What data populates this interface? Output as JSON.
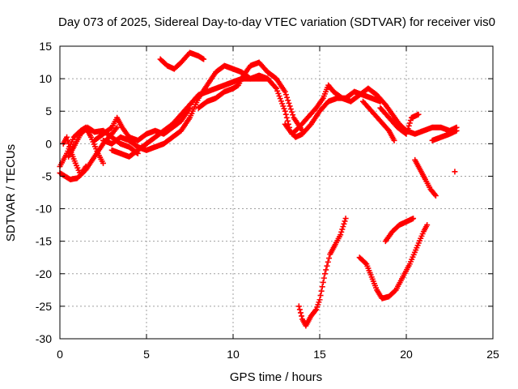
{
  "chart_data": {
    "type": "scatter",
    "title": "Day 073 of 2025, Sidereal Day-to-day VTEC variation (SDTVAR) for receiver vis0",
    "xlabel": "GPS time / hours",
    "ylabel": "SDTVAR / TECUs",
    "xlim": [
      0,
      25
    ],
    "ylim": [
      -30,
      15
    ],
    "xticks": [
      0,
      5,
      10,
      15,
      20,
      25
    ],
    "yticks": [
      -30,
      -25,
      -20,
      -15,
      -10,
      -5,
      0,
      5,
      10,
      15
    ],
    "grid": true,
    "marker": "plus",
    "color": "#ff0000",
    "series": [
      {
        "values": [
          [
            0.0,
            -4.5
          ],
          [
            0.3,
            -5.0
          ],
          [
            0.6,
            -5.5
          ],
          [
            1.0,
            -5.3
          ],
          [
            1.5,
            -4.0
          ],
          [
            2.0,
            -2.0
          ],
          [
            2.5,
            0.0
          ],
          [
            3.0,
            1.5
          ],
          [
            3.3,
            2.5
          ]
        ]
      },
      {
        "values": [
          [
            0.0,
            -3.5
          ],
          [
            0.4,
            -1.5
          ],
          [
            0.8,
            1.0
          ],
          [
            1.2,
            2.0
          ],
          [
            1.5,
            2.5
          ],
          [
            1.8,
            1.0
          ],
          [
            2.2,
            -1.5
          ],
          [
            2.5,
            -3.0
          ]
        ]
      },
      {
        "values": [
          [
            0.2,
            0.0
          ],
          [
            0.4,
            1.0
          ],
          [
            0.6,
            -1.0
          ],
          [
            0.9,
            -3.0
          ],
          [
            1.2,
            -4.8
          ],
          [
            1.5,
            -3.5
          ]
        ]
      },
      {
        "values": [
          [
            0.5,
            -2.0
          ],
          [
            0.8,
            -0.5
          ],
          [
            1.2,
            1.5
          ],
          [
            1.6,
            2.5
          ],
          [
            2.0,
            1.8
          ],
          [
            2.5,
            2.0
          ],
          [
            3.0,
            1.0
          ],
          [
            3.5,
            0.0
          ],
          [
            4.0,
            -0.5
          ],
          [
            4.5,
            -1.5
          ]
        ]
      },
      {
        "values": [
          [
            2.0,
            0.5
          ],
          [
            2.5,
            1.5
          ],
          [
            3.0,
            2.5
          ],
          [
            3.3,
            4.0
          ],
          [
            3.6,
            2.5
          ],
          [
            4.0,
            1.0
          ],
          [
            4.5,
            0.5
          ],
          [
            5.0,
            1.5
          ],
          [
            5.5,
            2.0
          ],
          [
            6.0,
            1.5
          ],
          [
            6.5,
            2.5
          ],
          [
            7.0,
            3.5
          ],
          [
            7.5,
            5.5
          ]
        ]
      },
      {
        "values": [
          [
            2.5,
            0.5
          ],
          [
            3.0,
            0.0
          ],
          [
            3.5,
            1.0
          ],
          [
            4.0,
            0.5
          ],
          [
            4.5,
            -0.5
          ],
          [
            5.0,
            -1.0
          ],
          [
            5.5,
            -0.5
          ],
          [
            6.0,
            0.0
          ],
          [
            6.5,
            1.0
          ],
          [
            7.0,
            2.0
          ],
          [
            7.5,
            4.0
          ],
          [
            8.0,
            7.0
          ],
          [
            8.5,
            9.0
          ],
          [
            9.0,
            11.0
          ],
          [
            9.5,
            12.0
          ],
          [
            10.0,
            11.5
          ],
          [
            10.5,
            11.0
          ],
          [
            11.0,
            10.0
          ],
          [
            11.5,
            10.0
          ],
          [
            12.0,
            10.0
          ]
        ]
      },
      {
        "values": [
          [
            3.0,
            -1.0
          ],
          [
            3.5,
            -1.5
          ],
          [
            4.0,
            -2.0
          ],
          [
            4.5,
            -1.0
          ],
          [
            5.0,
            0.0
          ],
          [
            5.5,
            1.0
          ],
          [
            6.0,
            2.0
          ],
          [
            6.5,
            3.0
          ],
          [
            7.0,
            4.5
          ],
          [
            7.5,
            6.0
          ],
          [
            8.0,
            7.5
          ],
          [
            8.5,
            8.0
          ],
          [
            9.0,
            8.5
          ],
          [
            9.5,
            9.0
          ],
          [
            10.0,
            9.5
          ],
          [
            10.5,
            10.0
          ],
          [
            11.0,
            10.0
          ],
          [
            11.5,
            10.5
          ],
          [
            12.0,
            10.0
          ],
          [
            12.5,
            8.5
          ],
          [
            13.0,
            5.0
          ],
          [
            13.3,
            2.0
          ],
          [
            13.6,
            1.0
          ],
          [
            14.0,
            1.5
          ],
          [
            14.5,
            3.0
          ],
          [
            15.0,
            5.0
          ],
          [
            15.5,
            6.5
          ],
          [
            16.0,
            7.0
          ],
          [
            16.5,
            7.0
          ],
          [
            17.0,
            8.0
          ],
          [
            17.5,
            7.5
          ],
          [
            18.0,
            7.0
          ],
          [
            18.5,
            6.5
          ]
        ]
      },
      {
        "values": [
          [
            5.8,
            13.0
          ],
          [
            6.2,
            12.0
          ],
          [
            6.6,
            11.5
          ],
          [
            7.0,
            12.5
          ],
          [
            7.5,
            14.0
          ],
          [
            8.0,
            13.5
          ],
          [
            8.3,
            13.0
          ]
        ]
      },
      {
        "values": [
          [
            8.0,
            5.5
          ],
          [
            8.5,
            6.5
          ],
          [
            9.0,
            7.0
          ],
          [
            9.5,
            8.0
          ],
          [
            10.0,
            8.5
          ],
          [
            10.3,
            9.0
          ],
          [
            10.6,
            10.5
          ],
          [
            11.0,
            12.0
          ],
          [
            11.5,
            12.5
          ],
          [
            12.0,
            11.0
          ],
          [
            12.5,
            10.0
          ],
          [
            13.0,
            8.0
          ],
          [
            13.5,
            4.0
          ],
          [
            14.0,
            2.0
          ]
        ]
      },
      {
        "values": [
          [
            13.0,
            3.0
          ],
          [
            13.4,
            1.5
          ],
          [
            13.8,
            2.5
          ],
          [
            14.3,
            4.0
          ],
          [
            14.8,
            5.5
          ],
          [
            15.2,
            7.0
          ],
          [
            15.5,
            9.0
          ],
          [
            15.8,
            8.0
          ],
          [
            16.3,
            7.0
          ],
          [
            16.8,
            6.5
          ],
          [
            17.3,
            7.5
          ],
          [
            17.8,
            8.5
          ],
          [
            18.3,
            7.5
          ],
          [
            18.8,
            6.0
          ],
          [
            19.2,
            4.5
          ],
          [
            19.6,
            3.0
          ],
          [
            20.0,
            2.0
          ],
          [
            20.5,
            1.5
          ],
          [
            21.0,
            2.0
          ],
          [
            21.5,
            2.5
          ],
          [
            22.0,
            2.5
          ],
          [
            22.5,
            2.0
          ],
          [
            22.9,
            2.5
          ]
        ]
      },
      {
        "values": [
          [
            17.5,
            6.5
          ],
          [
            18.0,
            5.0
          ],
          [
            18.5,
            3.5
          ],
          [
            19.0,
            2.0
          ],
          [
            19.3,
            0.5
          ]
        ]
      },
      {
        "values": [
          [
            18.5,
            5.5
          ],
          [
            19.0,
            4.0
          ],
          [
            19.5,
            2.5
          ],
          [
            20.0,
            1.5
          ],
          [
            20.3,
            4.0
          ],
          [
            20.7,
            4.5
          ]
        ]
      },
      {
        "values": [
          [
            21.5,
            0.5
          ],
          [
            22.0,
            1.0
          ],
          [
            22.5,
            1.5
          ],
          [
            22.9,
            2.0
          ]
        ]
      },
      {
        "values": [
          [
            20.5,
            -2.5
          ],
          [
            20.8,
            -4.0
          ],
          [
            21.1,
            -5.5
          ],
          [
            21.4,
            -7.0
          ],
          [
            21.7,
            -8.0
          ]
        ]
      },
      {
        "values": [
          [
            22.8,
            -4.3
          ]
        ]
      },
      {
        "values": [
          [
            13.8,
            -25.0
          ],
          [
            14.0,
            -27.0
          ],
          [
            14.2,
            -28.0
          ],
          [
            14.5,
            -26.5
          ],
          [
            14.8,
            -25.5
          ],
          [
            15.0,
            -24.0
          ],
          [
            15.3,
            -20.0
          ],
          [
            15.6,
            -17.0
          ],
          [
            15.9,
            -15.5
          ],
          [
            16.2,
            -14.0
          ],
          [
            16.5,
            -11.5
          ]
        ]
      },
      {
        "values": [
          [
            17.3,
            -17.5
          ],
          [
            17.7,
            -18.5
          ],
          [
            18.0,
            -20.5
          ],
          [
            18.3,
            -22.5
          ],
          [
            18.6,
            -23.8
          ],
          [
            19.0,
            -23.5
          ],
          [
            19.4,
            -22.5
          ],
          [
            19.8,
            -20.5
          ],
          [
            20.2,
            -18.5
          ],
          [
            20.6,
            -16.0
          ],
          [
            21.0,
            -13.5
          ],
          [
            21.2,
            -12.5
          ]
        ]
      },
      {
        "values": [
          [
            18.8,
            -15.0
          ],
          [
            19.2,
            -13.5
          ],
          [
            19.6,
            -12.5
          ],
          [
            20.0,
            -12.0
          ],
          [
            20.4,
            -11.5
          ]
        ]
      }
    ]
  }
}
